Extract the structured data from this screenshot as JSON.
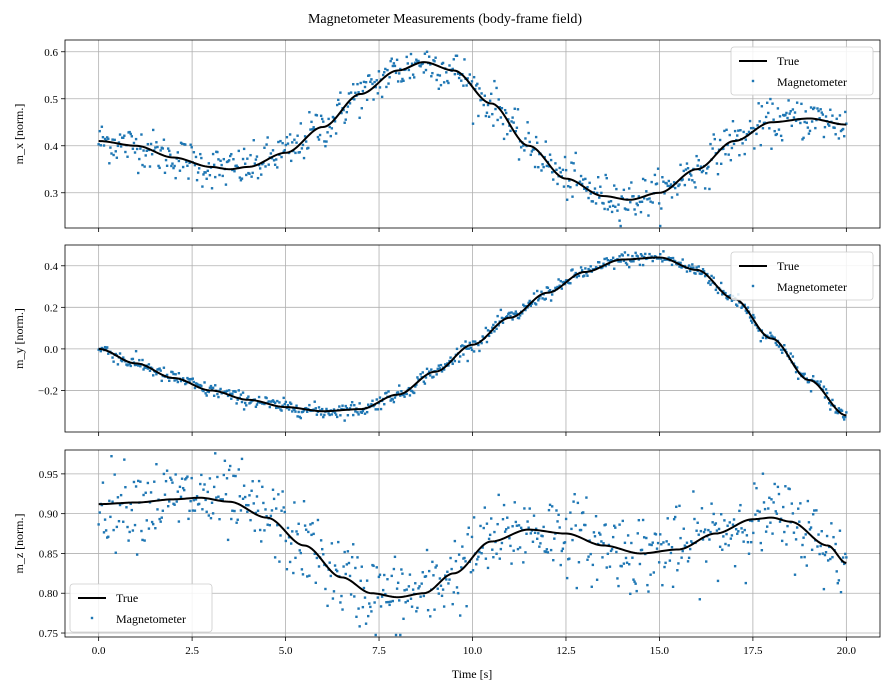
{
  "figure": {
    "title": "Magnetometer Measurements (body-frame field)",
    "xlabel": "Time [s]"
  },
  "chart_data": [
    {
      "type": "line",
      "ylabel": "m_x [norm.]",
      "xlim": [
        -0.9,
        20.9
      ],
      "ylim": [
        0.225,
        0.625
      ],
      "yticks": [
        0.3,
        0.4,
        0.5,
        0.6
      ],
      "ytick_labels": [
        "0.3",
        "0.4",
        "0.5",
        "0.6"
      ],
      "xticks": [
        0,
        2.5,
        5,
        7.5,
        10,
        12.5,
        15,
        17.5,
        20
      ],
      "xtick_labels": [],
      "grid": true,
      "legend": "upper-right",
      "noise": 0.022,
      "series": [
        {
          "name": "True",
          "style": "line",
          "color": "#000000",
          "x": [
            0,
            1,
            2,
            3,
            3.5,
            4,
            5,
            6,
            7,
            8,
            8.7,
            9.5,
            10.5,
            11.5,
            12.5,
            13.5,
            14.2,
            15,
            16,
            17,
            18,
            19,
            20
          ],
          "y": [
            0.41,
            0.4,
            0.375,
            0.355,
            0.35,
            0.355,
            0.385,
            0.44,
            0.51,
            0.56,
            0.578,
            0.56,
            0.49,
            0.4,
            0.33,
            0.293,
            0.285,
            0.3,
            0.35,
            0.41,
            0.45,
            0.458,
            0.445
          ]
        },
        {
          "name": "Magnetometer",
          "style": "points",
          "color": "#1f77b4"
        }
      ]
    },
    {
      "type": "line",
      "ylabel": "m_y [norm.]",
      "xlim": [
        -0.9,
        20.9
      ],
      "ylim": [
        -0.4,
        0.5
      ],
      "yticks": [
        -0.2,
        0.0,
        0.2,
        0.4
      ],
      "ytick_labels": [
        "−0.2",
        "0.0",
        "0.2",
        "0.4"
      ],
      "xticks": [
        0,
        2.5,
        5,
        7.5,
        10,
        12.5,
        15,
        17.5,
        20
      ],
      "xtick_labels": [],
      "grid": true,
      "legend": "upper-right",
      "noise": 0.018,
      "series": [
        {
          "name": "True",
          "style": "line",
          "color": "#000000",
          "x": [
            0,
            1,
            2,
            3,
            4,
            5,
            6,
            7,
            8,
            9,
            10,
            11,
            12,
            13,
            14,
            15,
            16,
            17,
            18,
            19,
            20
          ],
          "y": [
            0.0,
            -0.07,
            -0.14,
            -0.2,
            -0.245,
            -0.28,
            -0.3,
            -0.29,
            -0.22,
            -0.11,
            0.02,
            0.15,
            0.27,
            0.37,
            0.43,
            0.44,
            0.38,
            0.24,
            0.05,
            -0.15,
            -0.32
          ]
        },
        {
          "name": "Magnetometer",
          "style": "points",
          "color": "#1f77b4"
        }
      ]
    },
    {
      "type": "line",
      "ylabel": "m_z [norm.]",
      "xlim": [
        -0.9,
        20.9
      ],
      "ylim": [
        0.745,
        0.98
      ],
      "yticks": [
        0.75,
        0.8,
        0.85,
        0.9,
        0.95
      ],
      "ytick_labels": [
        "0.75",
        "0.80",
        "0.85",
        "0.90",
        "0.95"
      ],
      "xticks": [
        0,
        2.5,
        5,
        7.5,
        10,
        12.5,
        15,
        17.5,
        20
      ],
      "xtick_labels": [
        "0.0",
        "2.5",
        "5.0",
        "7.5",
        "10.0",
        "12.5",
        "15.0",
        "17.5",
        "20.0"
      ],
      "grid": true,
      "legend": "lower-left",
      "noise": 0.025,
      "series": [
        {
          "name": "True",
          "style": "line",
          "color": "#000000",
          "x": [
            0,
            1,
            2,
            2.7,
            3.5,
            4.5,
            5.5,
            6.5,
            7.3,
            8,
            8.7,
            9.5,
            10.5,
            11.5,
            12.5,
            13.5,
            14.5,
            15.5,
            16.5,
            17.5,
            18,
            18.5,
            19.5,
            20
          ],
          "y": [
            0.912,
            0.914,
            0.918,
            0.92,
            0.915,
            0.895,
            0.86,
            0.82,
            0.8,
            0.795,
            0.8,
            0.825,
            0.865,
            0.88,
            0.875,
            0.86,
            0.85,
            0.855,
            0.875,
            0.893,
            0.895,
            0.89,
            0.86,
            0.838
          ]
        },
        {
          "name": "Magnetometer",
          "style": "points",
          "color": "#1f77b4"
        }
      ]
    }
  ]
}
